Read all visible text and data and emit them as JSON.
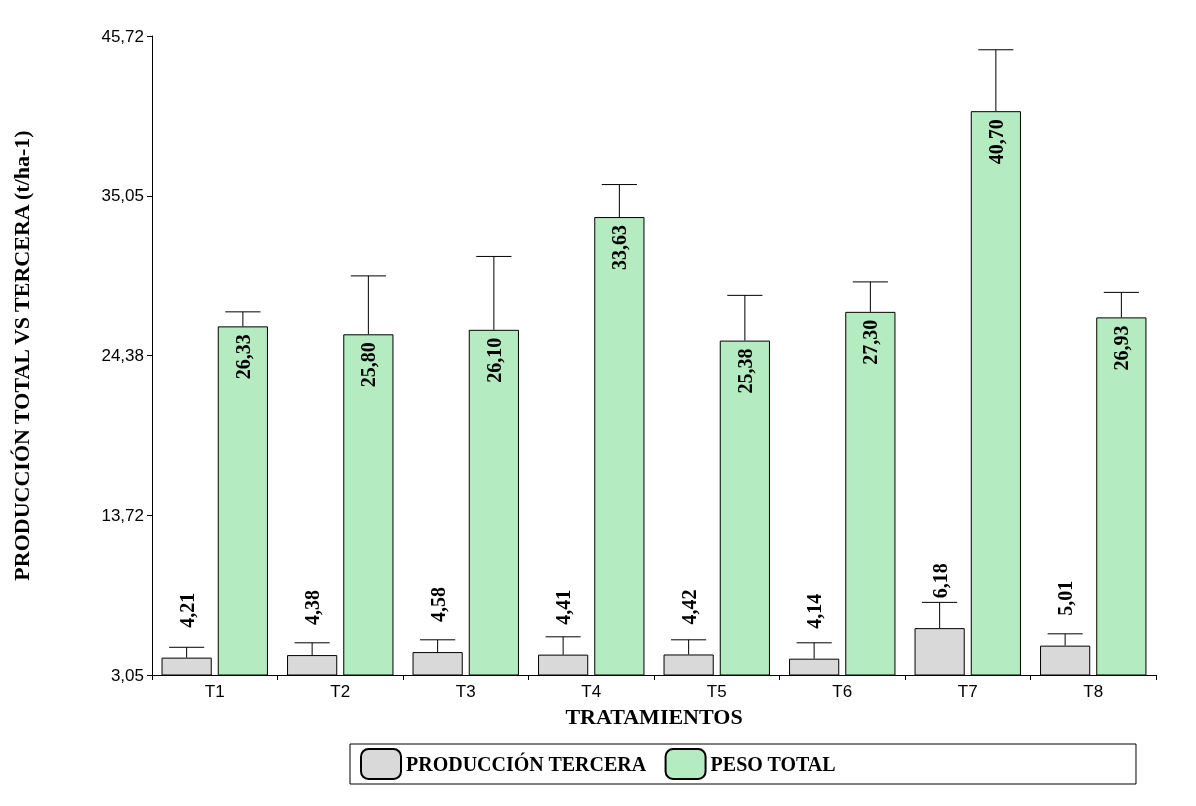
{
  "chart_data": {
    "type": "bar",
    "xlabel": "TRATAMIENTOS",
    "ylabel": "PRODUCCIÓN TOTAL VS TERCERA (t/ha-1)",
    "categories": [
      "T1",
      "T2",
      "T3",
      "T4",
      "T5",
      "T6",
      "T7",
      "T8"
    ],
    "ylim": [
      3.05,
      45.72
    ],
    "yticks": [
      {
        "value": 3.05,
        "label": "3,05"
      },
      {
        "value": 13.72,
        "label": "13,72"
      },
      {
        "value": 24.38,
        "label": "24,38"
      },
      {
        "value": 35.05,
        "label": "35,05"
      },
      {
        "value": 45.72,
        "label": "45,72"
      }
    ],
    "grid": false,
    "legend": "bottom",
    "series": [
      {
        "name": "PRODUCCIÓN TERCERA",
        "color": "#d9d9d9",
        "values": [
          4.21,
          4.38,
          4.58,
          4.41,
          4.42,
          4.14,
          6.18,
          5.01
        ],
        "value_labels": [
          "4,21",
          "4,38",
          "4,58",
          "4,41",
          "4,42",
          "4,14",
          "6,18",
          "5,01"
        ],
        "errors": [
          [
            4.21,
            4.9
          ],
          [
            4.38,
            5.2
          ],
          [
            4.58,
            5.4
          ],
          [
            4.41,
            5.6
          ],
          [
            4.42,
            5.4
          ],
          [
            4.14,
            5.2
          ],
          [
            6.18,
            7.9
          ],
          [
            5.01,
            5.8
          ]
        ]
      },
      {
        "name": "PESO TOTAL",
        "color": "#b5ebc0",
        "values": [
          26.33,
          25.8,
          26.1,
          33.63,
          25.38,
          27.3,
          40.7,
          26.93
        ],
        "value_labels": [
          "26,33",
          "25,80",
          "26,10",
          "33,63",
          "25,38",
          "27,30",
          "40,70",
          "26,93"
        ],
        "errors": [
          [
            26.33,
            27.3
          ],
          [
            25.8,
            29.7
          ],
          [
            26.1,
            31.0
          ],
          [
            33.63,
            35.8
          ],
          [
            25.38,
            28.4
          ],
          [
            27.3,
            29.3
          ],
          [
            40.7,
            44.8
          ],
          [
            26.93,
            28.6
          ]
        ]
      }
    ]
  }
}
